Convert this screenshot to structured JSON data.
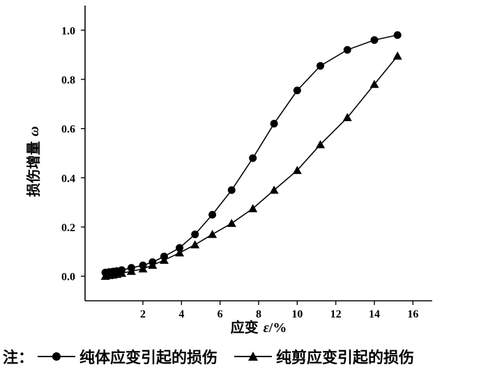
{
  "chart_data": {
    "type": "line",
    "title": "",
    "xlabel_prefix": "应变 ",
    "xlabel_symbol": "ε",
    "xlabel_suffix": "/%",
    "ylabel_text": "损伤增量 ",
    "ylabel_symbol": "ω",
    "xlim": [
      -1,
      17
    ],
    "ylim": [
      -0.1,
      1.1
    ],
    "xticks": [
      2,
      4,
      6,
      8,
      10,
      12,
      14,
      16
    ],
    "yticks": [
      0.0,
      0.2,
      0.4,
      0.6,
      0.8,
      1.0
    ],
    "ytick_labels": [
      "0.0",
      "0.2",
      "0.4",
      "0.6",
      "0.8",
      "1.0"
    ],
    "grid": false,
    "series": [
      {
        "marker": "circle",
        "x": [
          0.05,
          0.25,
          0.45,
          0.65,
          0.9,
          1.4,
          2.0,
          2.5,
          3.1,
          3.9,
          4.7,
          5.6,
          6.6,
          7.7,
          8.8,
          10.0,
          11.2,
          12.6,
          14.0,
          15.2
        ],
        "y": [
          0.015,
          0.017,
          0.019,
          0.021,
          0.025,
          0.034,
          0.044,
          0.057,
          0.08,
          0.115,
          0.17,
          0.25,
          0.35,
          0.48,
          0.62,
          0.755,
          0.855,
          0.92,
          0.96,
          0.98
        ]
      },
      {
        "marker": "triangle",
        "x": [
          0.05,
          0.25,
          0.45,
          0.65,
          0.9,
          1.4,
          2.0,
          2.5,
          3.1,
          3.9,
          4.7,
          5.6,
          6.6,
          7.7,
          8.8,
          10.0,
          11.2,
          12.6,
          14.0,
          15.2
        ],
        "y": [
          0.0,
          0.003,
          0.005,
          0.008,
          0.012,
          0.02,
          0.03,
          0.045,
          0.065,
          0.095,
          0.128,
          0.17,
          0.215,
          0.275,
          0.35,
          0.43,
          0.535,
          0.645,
          0.78,
          0.895
        ]
      }
    ]
  },
  "note": {
    "prefix": "注：",
    "item1_label": "纯体应变引起的损伤",
    "item2_label": "纯剪应变引起的损伤"
  }
}
